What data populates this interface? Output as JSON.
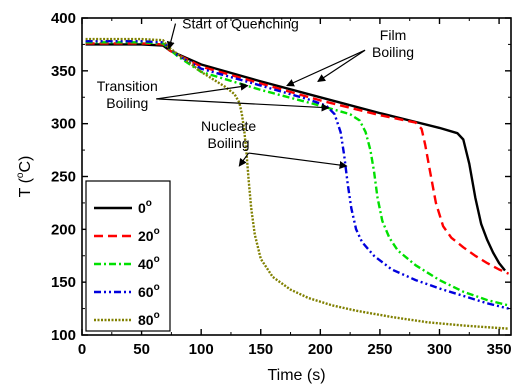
{
  "chart_data": {
    "type": "line",
    "title": "",
    "xlabel": "Time (s)",
    "ylabel": "T ( C)",
    "ylabel_degree": "o",
    "xlim": [
      0,
      360
    ],
    "ylim": [
      100,
      400
    ],
    "xticks": [
      0,
      50,
      100,
      150,
      200,
      250,
      300,
      350
    ],
    "yticks": [
      100,
      150,
      200,
      250,
      300,
      350,
      400
    ],
    "grid": false,
    "legend_position": "lower-left",
    "series": [
      {
        "name": "0",
        "name_sup": "o",
        "color": "#000000",
        "dash": "solid",
        "points": [
          [
            3,
            375
          ],
          [
            50,
            375
          ],
          [
            68,
            374
          ],
          [
            74,
            369
          ],
          [
            100,
            356
          ],
          [
            150,
            340
          ],
          [
            200,
            325
          ],
          [
            250,
            310
          ],
          [
            300,
            296
          ],
          [
            315,
            291
          ],
          [
            320,
            285
          ],
          [
            325,
            262
          ],
          [
            330,
            230
          ],
          [
            335,
            205
          ],
          [
            340,
            190
          ],
          [
            345,
            178
          ],
          [
            350,
            168
          ],
          [
            355,
            161
          ]
        ]
      },
      {
        "name": "20",
        "name_sup": "o",
        "color": "#ff0000",
        "dash": "dashed",
        "points": [
          [
            3,
            376
          ],
          [
            50,
            376
          ],
          [
            68,
            375
          ],
          [
            74,
            369
          ],
          [
            100,
            354
          ],
          [
            150,
            338
          ],
          [
            200,
            322
          ],
          [
            250,
            308
          ],
          [
            280,
            301
          ],
          [
            285,
            295
          ],
          [
            288,
            280
          ],
          [
            292,
            255
          ],
          [
            297,
            225
          ],
          [
            303,
            203
          ],
          [
            310,
            192
          ],
          [
            320,
            183
          ],
          [
            330,
            175
          ],
          [
            340,
            168
          ],
          [
            350,
            162
          ],
          [
            358,
            158
          ]
        ]
      },
      {
        "name": "40",
        "name_sup": "o",
        "color": "#00e000",
        "dash": "dashdot",
        "points": [
          [
            3,
            377
          ],
          [
            50,
            377
          ],
          [
            68,
            376
          ],
          [
            72,
            372
          ],
          [
            80,
            364
          ],
          [
            100,
            349
          ],
          [
            150,
            332
          ],
          [
            200,
            317
          ],
          [
            225,
            309
          ],
          [
            233,
            303
          ],
          [
            238,
            292
          ],
          [
            242,
            275
          ],
          [
            245,
            255
          ],
          [
            248,
            230
          ],
          [
            252,
            208
          ],
          [
            258,
            192
          ],
          [
            265,
            180
          ],
          [
            280,
            166
          ],
          [
            300,
            152
          ],
          [
            320,
            141
          ],
          [
            340,
            133
          ],
          [
            358,
            128
          ]
        ]
      },
      {
        "name": "60",
        "name_sup": "o",
        "color": "#0000dd",
        "dash": "dashdotdot",
        "points": [
          [
            3,
            378
          ],
          [
            50,
            378
          ],
          [
            68,
            377
          ],
          [
            72,
            373
          ],
          [
            80,
            365
          ],
          [
            100,
            352
          ],
          [
            150,
            336
          ],
          [
            190,
            323
          ],
          [
            205,
            317
          ],
          [
            212,
            309
          ],
          [
            217,
            292
          ],
          [
            220,
            270
          ],
          [
            223,
            243
          ],
          [
            226,
            220
          ],
          [
            230,
            200
          ],
          [
            235,
            188
          ],
          [
            245,
            175
          ],
          [
            260,
            162
          ],
          [
            280,
            152
          ],
          [
            300,
            144
          ],
          [
            320,
            137
          ],
          [
            340,
            130
          ],
          [
            358,
            125
          ]
        ]
      },
      {
        "name": "80",
        "name_sup": "o",
        "color": "#808000",
        "dash": "dotted",
        "points": [
          [
            3,
            380
          ],
          [
            50,
            380
          ],
          [
            68,
            379
          ],
          [
            72,
            373
          ],
          [
            80,
            366
          ],
          [
            90,
            358
          ],
          [
            100,
            349
          ],
          [
            110,
            342
          ],
          [
            120,
            335
          ],
          [
            128,
            328
          ],
          [
            132,
            320
          ],
          [
            134,
            310
          ],
          [
            136,
            295
          ],
          [
            138,
            272
          ],
          [
            140,
            245
          ],
          [
            142,
            220
          ],
          [
            145,
            195
          ],
          [
            150,
            172
          ],
          [
            160,
            155
          ],
          [
            175,
            143
          ],
          [
            190,
            135
          ],
          [
            210,
            128
          ],
          [
            230,
            123
          ],
          [
            260,
            117
          ],
          [
            290,
            112
          ],
          [
            320,
            109
          ],
          [
            358,
            106
          ]
        ]
      }
    ],
    "annotations": [
      {
        "id": "start-of-quenching",
        "lines": [
          "Start of Quenching"
        ],
        "x": 133,
        "y": 390,
        "arrow_to": [
          [
            73,
            371
          ]
        ]
      },
      {
        "id": "film-boiling",
        "lines": [
          "Film",
          "Boiling"
        ],
        "x": 261,
        "y": 379,
        "arrow_to": [
          [
            198,
            340
          ],
          [
            172,
            336
          ]
        ]
      },
      {
        "id": "transition-boiling",
        "lines": [
          "Transition",
          "Boiling"
        ],
        "x": 38,
        "y": 331,
        "arrow_to": [
          [
            139,
            336
          ],
          [
            207,
            315
          ]
        ]
      },
      {
        "id": "nucleate-boiling",
        "lines": [
          "Nucleate",
          "Boiling"
        ],
        "x": 123,
        "y": 293,
        "arrow_to": [
          [
            132,
            260
          ],
          [
            222,
            260
          ]
        ]
      }
    ]
  }
}
